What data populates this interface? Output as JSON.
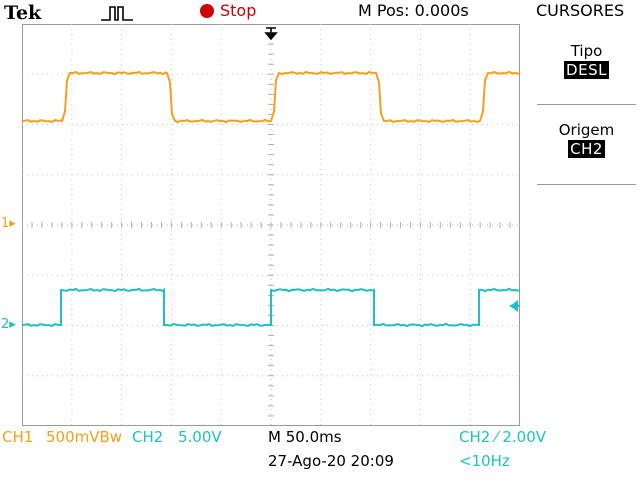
{
  "header": {
    "brand": "Tek",
    "trigger_icon": "trigger-pulse-icon",
    "run_state": "Stop",
    "m_pos": "M Pos: 0.000s",
    "menu_title": "CURSORES"
  },
  "side_menu": [
    {
      "label": "Tipo",
      "value": "DESL"
    },
    {
      "label": "Origem",
      "value": "CH2"
    }
  ],
  "channels": {
    "ch1": {
      "marker": "1",
      "color": "#f4a01c"
    },
    "ch2": {
      "marker": "2",
      "color": "#1fbfc4"
    }
  },
  "footer": {
    "ch1_label": "CH1",
    "ch1_scale": "500mVBw",
    "ch2_label": "CH2",
    "ch2_scale": "5.00V",
    "timebase": "M 50.0ms",
    "date": "27-Ago-20 20:09",
    "trigger_desc": "CH2 ⁄ 2.00V",
    "freq": "<10Hz"
  },
  "colors": {
    "ch1": "#f4a01c",
    "ch2": "#1fbfc4",
    "stop": "#d10000",
    "grid": "#bdbdbd"
  }
}
